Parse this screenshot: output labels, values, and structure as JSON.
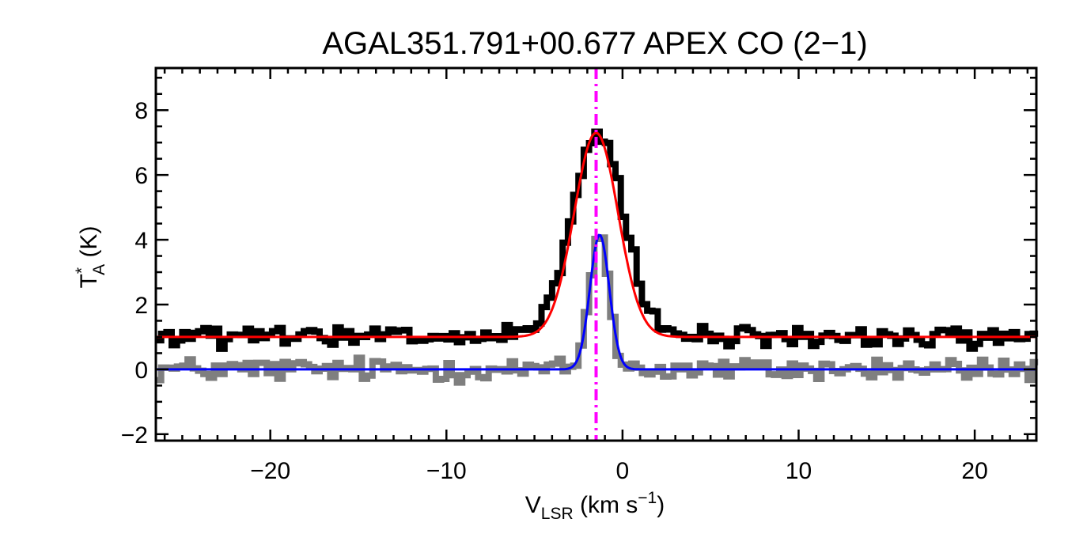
{
  "chart_data": {
    "type": "line",
    "title": "AGAL351.791+00.677  APEX CO (2−1)",
    "xlabel": {
      "main": "V",
      "sub": "LSR",
      "unit_prefix": " (km s",
      "unit_sup": "−1",
      "unit_suffix": ")"
    },
    "ylabel": {
      "main": "T",
      "sup": "*",
      "sub": "A",
      "unit": " (K)"
    },
    "xlim": [
      -26.5,
      23.5
    ],
    "ylim": [
      -2.2,
      9.3
    ],
    "xticks": [
      -20,
      -10,
      0,
      10,
      20
    ],
    "xtick_labels": [
      "−20",
      "−10",
      "0",
      "10",
      "20"
    ],
    "yticks": [
      -2,
      0,
      2,
      4,
      6,
      8
    ],
    "ytick_labels": [
      "−2",
      "0",
      "2",
      "4",
      "6",
      "8"
    ],
    "grid": false,
    "reference_line": {
      "x": -1.5,
      "color": "#ff00ff",
      "style": "dash-dot"
    },
    "series": [
      {
        "kind": "spectrum",
        "color": "#000000",
        "baseline": 1.0,
        "noise": 0.16,
        "gaussian": {
          "amplitude": 6.3,
          "center": -1.4,
          "sigma": 1.45
        }
      },
      {
        "kind": "spectrum",
        "color": "#7f7f7f",
        "baseline": 0.0,
        "noise": 0.18,
        "gaussian": {
          "amplitude": 4.2,
          "center": -1.3,
          "sigma": 0.55
        }
      },
      {
        "kind": "fit",
        "color": "#ff0000",
        "baseline": 1.0,
        "gaussian": {
          "amplitude": 6.3,
          "center": -1.5,
          "sigma": 1.25
        }
      },
      {
        "kind": "fit",
        "color": "#0000ff",
        "baseline": 0.0,
        "gaussian": {
          "amplitude": 4.15,
          "center": -1.3,
          "sigma": 0.55
        }
      }
    ]
  }
}
